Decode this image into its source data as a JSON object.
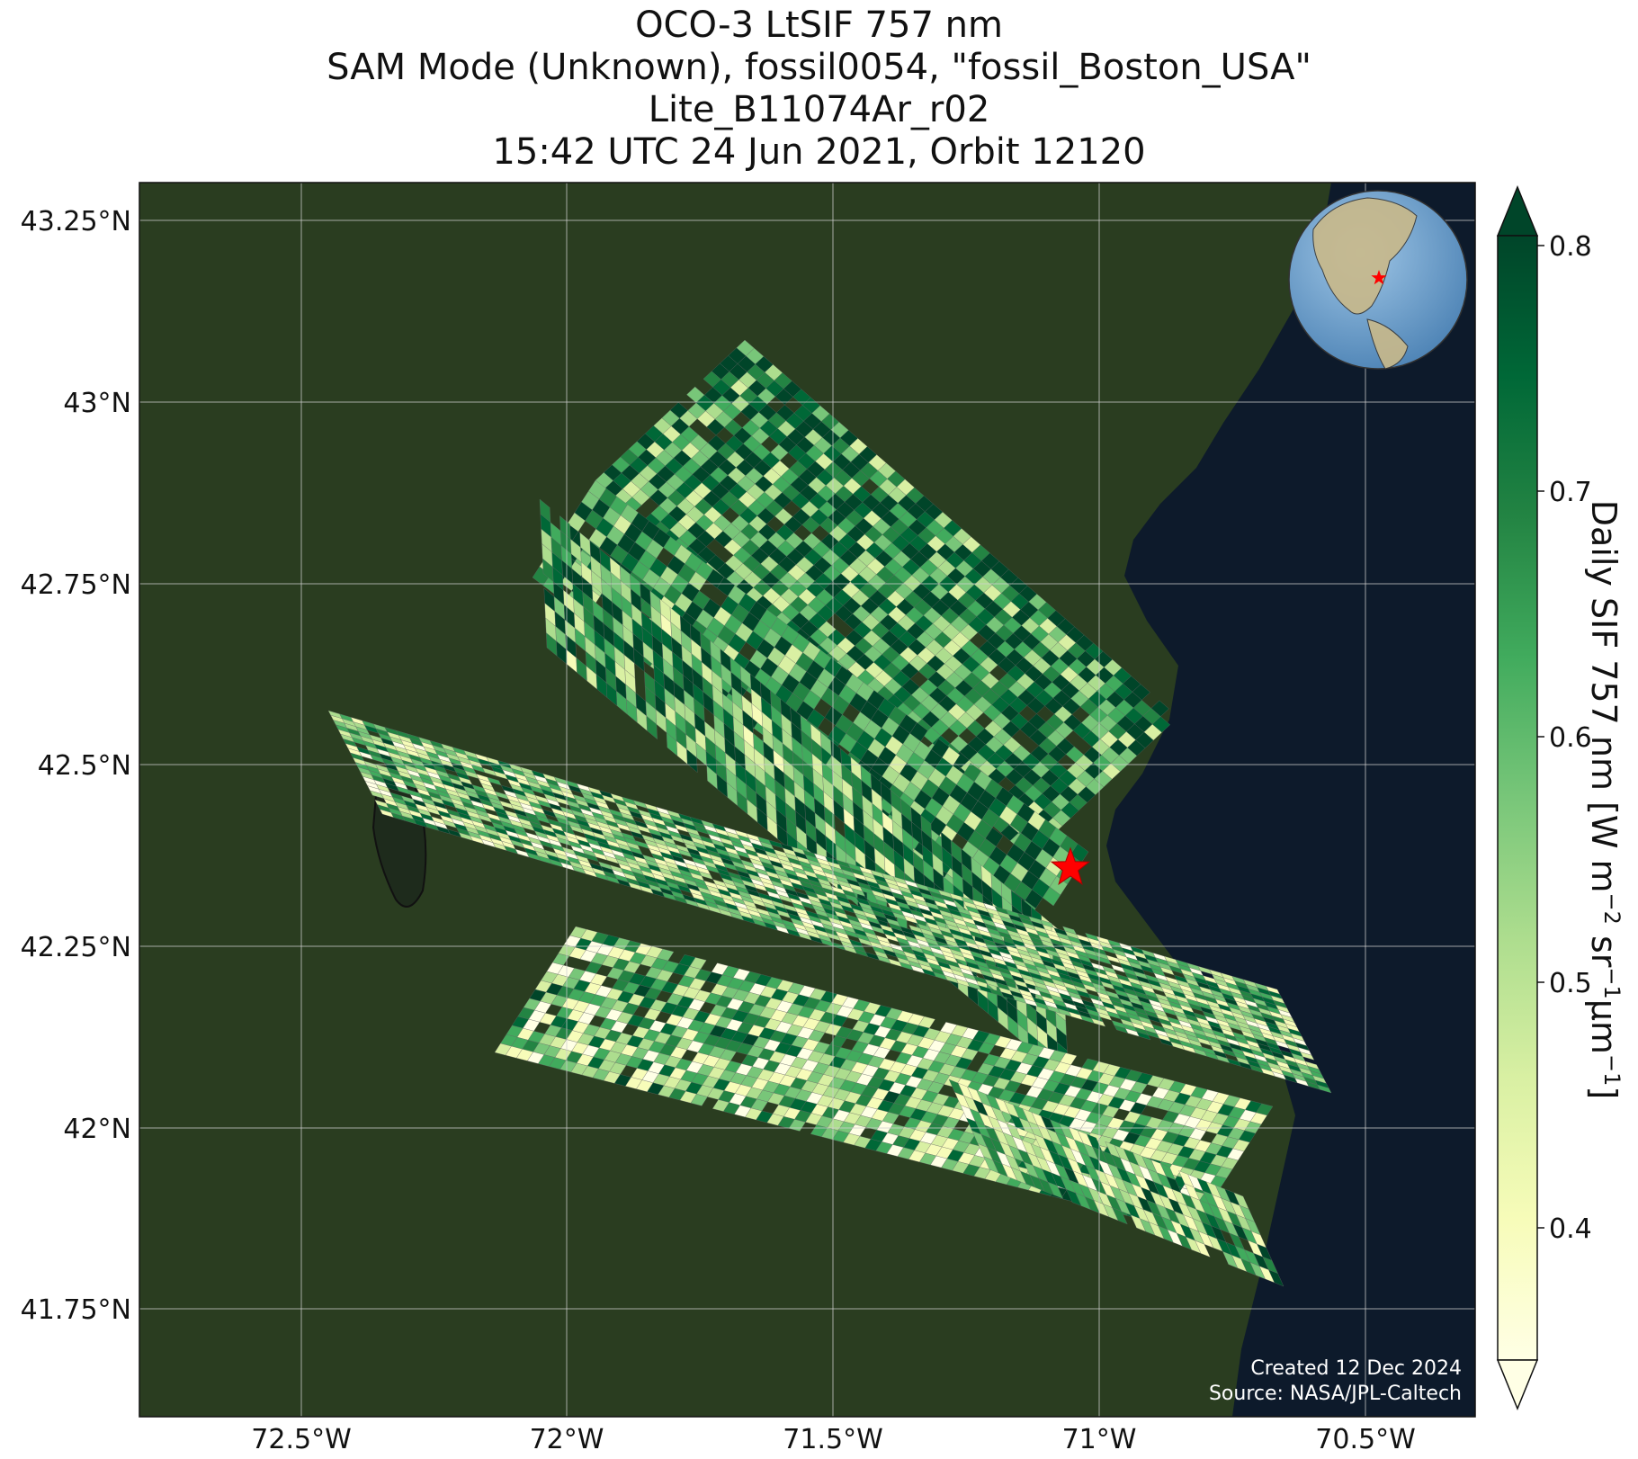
{
  "title": {
    "line1": "OCO-3 LtSIF 757 nm",
    "line2": "SAM Mode (Unknown), fossil0054, \"fossil_Boston_USA\"",
    "line3": "Lite_B11074Ar_r02",
    "line4": "15:42 UTC 24 Jun 2021, Orbit 12120"
  },
  "axes": {
    "lon_ticks": [
      "72.5°W",
      "72°W",
      "71.5°W",
      "71°W",
      "70.5°W"
    ],
    "lat_ticks": [
      "43.25°N",
      "43°N",
      "42.75°N",
      "42.5°N",
      "42.25°N",
      "42°N",
      "41.75°N"
    ]
  },
  "colorbar": {
    "label": "Daily SIF 757 nm [W m",
    "label_exp1": "−2",
    "label_mid": " sr",
    "label_exp2": "−1",
    "label_mid2": "μm",
    "label_exp3": "−1",
    "label_end": "]",
    "ticks": [
      "0.8",
      "0.7",
      "0.6",
      "0.5",
      "0.4"
    ],
    "colors": [
      "#ffffe5",
      "#f7fcb9",
      "#d9f0a3",
      "#addd8e",
      "#78c679",
      "#41ab5d",
      "#238443",
      "#006837",
      "#004529"
    ]
  },
  "credits": {
    "created": "Created 12 Dec 2024",
    "source": "Source: NASA/JPL-Caltech"
  },
  "target_marker": "red-star",
  "colors": {
    "land": "#2a3d20",
    "ocean": "#0d1a2b",
    "marker": "#ff0000"
  }
}
